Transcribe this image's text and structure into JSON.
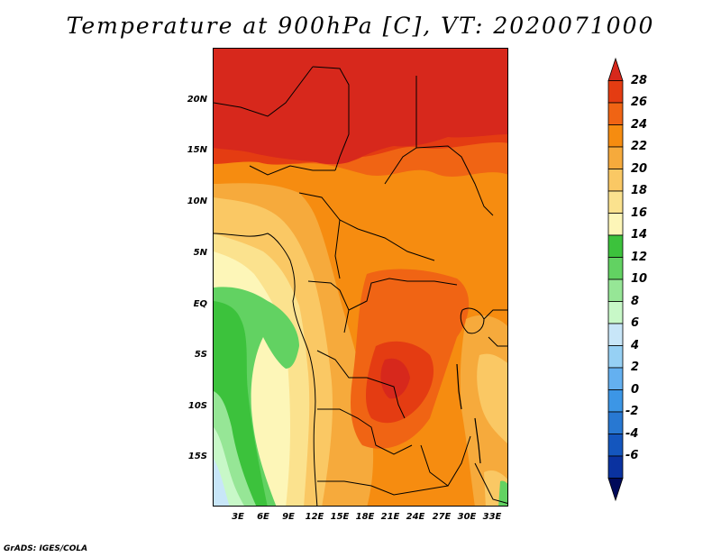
{
  "title": "Temperature at 900hPa [C], VT: 2020071000",
  "credit": "GrADS: IGES/COLA",
  "map": {
    "lat_labels": [
      "20N",
      "15N",
      "10N",
      "5N",
      "EQ",
      "5S",
      "10S",
      "15S"
    ],
    "lon_labels": [
      "3E",
      "6E",
      "9E",
      "12E",
      "15E",
      "18E",
      "21E",
      "24E",
      "27E",
      "30E",
      "33E"
    ]
  },
  "colorbar": {
    "labels": [
      "28",
      "26",
      "24",
      "22",
      "20",
      "18",
      "16",
      "14",
      "12",
      "10",
      "8",
      "6",
      "4",
      "2",
      "0",
      "-2",
      "-4",
      "-6"
    ],
    "colors_top_to_bottom": [
      "#d7281c",
      "#e43c12",
      "#f06414",
      "#f68c10",
      "#f6aa3c",
      "#fac864",
      "#fbe28e",
      "#fdf6b8",
      "#3cc23c",
      "#62d262",
      "#96e696",
      "#c8f8c8",
      "#c8e6f8",
      "#96d0f4",
      "#64b0f0",
      "#3c96e6",
      "#2878d2",
      "#1456be",
      "#0a32a0",
      "#000a5a"
    ]
  }
}
